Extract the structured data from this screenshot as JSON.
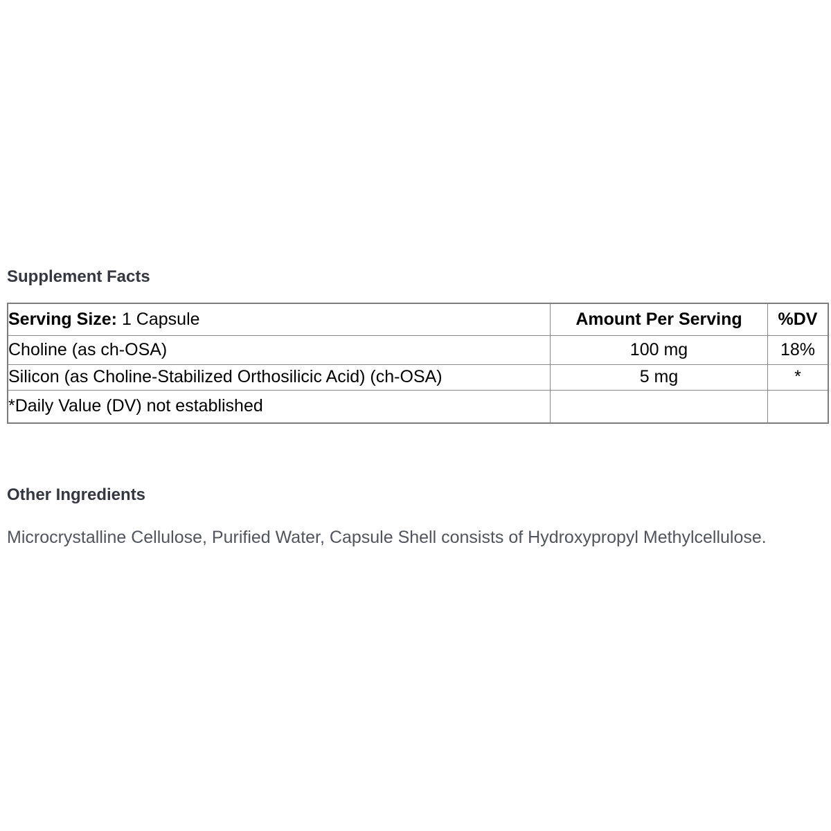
{
  "supplement_facts": {
    "title": "Supplement Facts",
    "table": {
      "serving_size_label": "Serving Size:",
      "serving_size_value": "1 Capsule",
      "amount_header": "Amount Per Serving",
      "dv_header": "%DV",
      "rows": [
        {
          "name": "Choline (as ch-OSA)",
          "amount": "100 mg",
          "dv": "18%"
        },
        {
          "name": "Silicon (as Choline-Stabilized Orthosilicic Acid) (ch-OSA)",
          "amount": "5 mg",
          "dv": "*"
        },
        {
          "name": "*Daily Value (DV) not established",
          "amount": "",
          "dv": ""
        }
      ]
    }
  },
  "other_ingredients": {
    "title": "Other Ingredients",
    "text": "Microcrystalline Cellulose, Purified Water, Capsule Shell consists of Hydroxypropyl Methylcellulose."
  },
  "colors": {
    "heading_text": "#333740",
    "body_text": "#50555d",
    "table_text": "#000000",
    "table_border": "#8a8a8a",
    "background": "#ffffff"
  }
}
